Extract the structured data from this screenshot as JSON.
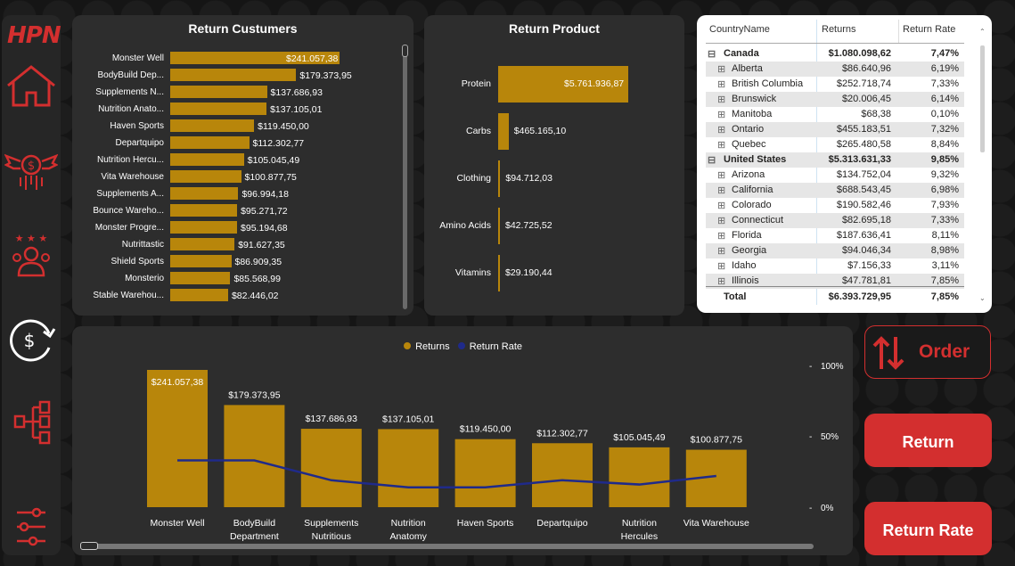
{
  "brand": {
    "logo_text": "HPN",
    "accent": "#d32f2f"
  },
  "nav": [
    {
      "icon": "home-icon"
    },
    {
      "icon": "money-wings-icon"
    },
    {
      "icon": "customers-stars-icon"
    },
    {
      "icon": "dollar-refresh-icon"
    },
    {
      "icon": "hierarchy-icon"
    },
    {
      "icon": "sliders-icon"
    }
  ],
  "customers": {
    "title": "Return Custumers",
    "items": [
      {
        "name": "Monster Well",
        "value": 241057.38,
        "label": "$241.057,38"
      },
      {
        "name": "BodyBuild Dep...",
        "value": 179373.95,
        "label": "$179.373,95"
      },
      {
        "name": "Supplements N...",
        "value": 137686.93,
        "label": "$137.686,93"
      },
      {
        "name": "Nutrition Anato...",
        "value": 137105.01,
        "label": "$137.105,01"
      },
      {
        "name": "Haven Sports",
        "value": 119450.0,
        "label": "$119.450,00"
      },
      {
        "name": "Departquipo",
        "value": 112302.77,
        "label": "$112.302,77"
      },
      {
        "name": "Nutrition Hercu...",
        "value": 105045.49,
        "label": "$105.045,49"
      },
      {
        "name": "Vita Warehouse",
        "value": 100877.75,
        "label": "$100.877,75"
      },
      {
        "name": "Supplements A...",
        "value": 96994.18,
        "label": "$96.994,18"
      },
      {
        "name": "Bounce Wareho...",
        "value": 95271.72,
        "label": "$95.271,72"
      },
      {
        "name": "Monster Progre...",
        "value": 95194.68,
        "label": "$95.194,68"
      },
      {
        "name": "Nutrittastic",
        "value": 91627.35,
        "label": "$91.627,35"
      },
      {
        "name": "Shield Sports",
        "value": 86909.35,
        "label": "$86.909,35"
      },
      {
        "name": "Monsterio",
        "value": 85568.99,
        "label": "$85.568,99"
      },
      {
        "name": "Stable Warehou...",
        "value": 82446.02,
        "label": "$82.446,02"
      }
    ]
  },
  "products": {
    "title": "Return Product",
    "items": [
      {
        "name": "Protein",
        "value": 5761936.87,
        "label": "$5.761.936,87"
      },
      {
        "name": "Carbs",
        "value": 465165.1,
        "label": "$465.165,10"
      },
      {
        "name": "Clothing",
        "value": 94712.03,
        "label": "$94.712,03"
      },
      {
        "name": "Amino Acids",
        "value": 42725.52,
        "label": "$42.725,52"
      },
      {
        "name": "Vitamins",
        "value": 29190.44,
        "label": "$29.190,44"
      }
    ]
  },
  "table": {
    "headers": [
      "CountryName",
      "Returns",
      "Return Rate"
    ],
    "rows": [
      {
        "name": "Canada",
        "returns": "$1.080.098,62",
        "rate": "7,47%",
        "level": 0,
        "exp": "⊟"
      },
      {
        "name": "Alberta",
        "returns": "$86.640,96",
        "rate": "6,19%",
        "level": 1,
        "exp": "⊞"
      },
      {
        "name": "British Columbia",
        "returns": "$252.718,74",
        "rate": "7,33%",
        "level": 1,
        "exp": "⊞"
      },
      {
        "name": "Brunswick",
        "returns": "$20.006,45",
        "rate": "6,14%",
        "level": 1,
        "exp": "⊞"
      },
      {
        "name": "Manitoba",
        "returns": "$68,38",
        "rate": "0,10%",
        "level": 1,
        "exp": "⊞"
      },
      {
        "name": "Ontario",
        "returns": "$455.183,51",
        "rate": "7,32%",
        "level": 1,
        "exp": "⊞"
      },
      {
        "name": "Quebec",
        "returns": "$265.480,58",
        "rate": "8,84%",
        "level": 1,
        "exp": "⊞"
      },
      {
        "name": "United States",
        "returns": "$5.313.631,33",
        "rate": "9,85%",
        "level": 0,
        "exp": "⊟"
      },
      {
        "name": "Arizona",
        "returns": "$134.752,04",
        "rate": "9,32%",
        "level": 1,
        "exp": "⊞"
      },
      {
        "name": "California",
        "returns": "$688.543,45",
        "rate": "6,98%",
        "level": 1,
        "exp": "⊞"
      },
      {
        "name": "Colorado",
        "returns": "$190.582,46",
        "rate": "7,93%",
        "level": 1,
        "exp": "⊞"
      },
      {
        "name": "Connecticut",
        "returns": "$82.695,18",
        "rate": "7,33%",
        "level": 1,
        "exp": "⊞"
      },
      {
        "name": "Florida",
        "returns": "$187.636,41",
        "rate": "8,11%",
        "level": 1,
        "exp": "⊞"
      },
      {
        "name": "Georgia",
        "returns": "$94.046,34",
        "rate": "8,98%",
        "level": 1,
        "exp": "⊞"
      },
      {
        "name": "Idaho",
        "returns": "$7.156,33",
        "rate": "3,11%",
        "level": 1,
        "exp": "⊞"
      },
      {
        "name": "Illinois",
        "returns": "$47.781,81",
        "rate": "7,85%",
        "level": 1,
        "exp": "⊞"
      }
    ],
    "total": {
      "name": "Total",
      "returns": "$6.393.729,95",
      "rate": "7,85%"
    }
  },
  "combo": {
    "legend": {
      "returns": "Returns",
      "rate": "Return Rate"
    },
    "y2_ticks": [
      "100%",
      "50%",
      "0%"
    ]
  },
  "buttons": {
    "order": "Order",
    "return": "Return",
    "return_rate": "Return Rate"
  },
  "chart_data": [
    {
      "type": "bar",
      "title": "Return Custumers",
      "orientation": "horizontal",
      "categories": [
        "Monster Well",
        "BodyBuild Dep...",
        "Supplements N...",
        "Nutrition Anato...",
        "Haven Sports",
        "Departquipo",
        "Nutrition Hercu...",
        "Vita Warehouse",
        "Supplements A...",
        "Bounce Wareho...",
        "Monster Progre...",
        "Nutrittastic",
        "Shield Sports",
        "Monsterio",
        "Stable Warehou..."
      ],
      "values": [
        241057.38,
        179373.95,
        137686.93,
        137105.01,
        119450.0,
        112302.77,
        105045.49,
        100877.75,
        96994.18,
        95271.72,
        95194.68,
        91627.35,
        86909.35,
        85568.99,
        82446.02
      ]
    },
    {
      "type": "bar",
      "title": "Return Product",
      "orientation": "horizontal",
      "categories": [
        "Protein",
        "Carbs",
        "Clothing",
        "Amino Acids",
        "Vitamins"
      ],
      "values": [
        5761936.87,
        465165.1,
        94712.03,
        42725.52,
        29190.44
      ]
    },
    {
      "type": "bar",
      "categories": [
        "Monster Well",
        "BodyBuild Department",
        "Supplements Nutritious",
        "Nutrition Anatomy",
        "Haven Sports",
        "Departquipo",
        "Nutrition Hercules",
        "Vita Warehouse"
      ],
      "series": [
        {
          "name": "Returns",
          "type": "bar",
          "values": [
            241057.38,
            179373.95,
            137686.93,
            137105.01,
            119450.0,
            112302.77,
            105045.49,
            100877.75
          ],
          "labels": [
            "$241.057,38",
            "$179.373,95",
            "$137.686,93",
            "$137.105,01",
            "$119.450,00",
            "$112.302,77",
            "$105.045,49",
            "$100.877,75"
          ]
        },
        {
          "name": "Return Rate",
          "type": "line",
          "axis": "secondary",
          "values": [
            0.33,
            0.33,
            0.19,
            0.14,
            0.14,
            0.19,
            0.16,
            0.22
          ]
        }
      ],
      "y2lim": [
        0,
        1
      ],
      "legend": "top-center",
      "colors": {
        "Returns": "#b8860b",
        "Return Rate": "#1f2a8a"
      }
    }
  ]
}
